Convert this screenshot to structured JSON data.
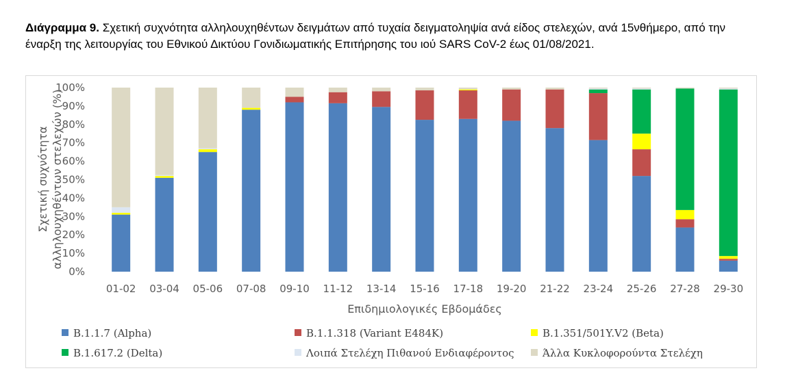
{
  "caption": {
    "label": "Διάγραμμα 9.",
    "text": "Σχετική συχνότητα αλληλουχηθέντων δειγμάτων από τυχαία δειγματοληψία ανά είδος στελεχών, ανά 15νθήμερο, από την έναρξη της λειτουργίας του Εθνικού Δικτύου Γονιδιωματικής Επιτήρησης του ιού SARS CoV-2 έως 01/08/2021."
  },
  "chart_data": {
    "type": "bar",
    "stacked": true,
    "xlabel": "Επιδημιολογικές Εβδομάδες",
    "ylabel": "Σχετική συχνότητα αλληλουχηθέντων στελεχών (%)",
    "ylim": [
      0,
      100
    ],
    "yticks": [
      "0%",
      "10%",
      "20%",
      "30%",
      "40%",
      "50%",
      "60%",
      "70%",
      "80%",
      "90%",
      "100%"
    ],
    "grid": false,
    "legend_position": "bottom",
    "categories": [
      "01-02",
      "03-04",
      "05-06",
      "07-08",
      "09-10",
      "11-12",
      "13-14",
      "15-16",
      "17-18",
      "19-20",
      "21-22",
      "23-24",
      "25-26",
      "27-28",
      "29-30"
    ],
    "series": [
      {
        "name": "B.1.1.7 (Alpha)",
        "color": "#4f81bd",
        "values": [
          31,
          51,
          65,
          88,
          92,
          91.5,
          89.5,
          82.5,
          83,
          82,
          78,
          71.5,
          52,
          24,
          6
        ]
      },
      {
        "name": "B.1.1.318 (Variant E484K)",
        "color": "#c0504d",
        "values": [
          0,
          0,
          0,
          0,
          3,
          6,
          8.5,
          16,
          15.5,
          17,
          21,
          25.5,
          14.5,
          4.5,
          1
        ]
      },
      {
        "name": "B.1.351/501Y.V2 (Beta)",
        "color": "#ffff00",
        "values": [
          1,
          1,
          1.5,
          1,
          0,
          0,
          0,
          0,
          0.5,
          0,
          0,
          0,
          8.5,
          5,
          1.5
        ]
      },
      {
        "name": "B.1.617.2 (Delta)",
        "color": "#00b050",
        "values": [
          0,
          0,
          0,
          0,
          0,
          0,
          0,
          0,
          0,
          0,
          0,
          2,
          24,
          66,
          90.5
        ]
      },
      {
        "name": "Λοιπά Στελέχη Πιθανού Ενδιαφέροντος",
        "color": "#dce6f2",
        "values": [
          3,
          0.5,
          0.5,
          0,
          0,
          0,
          0,
          0,
          0,
          0,
          0,
          0.5,
          0.5,
          0,
          0.5
        ]
      },
      {
        "name": "Άλλα Κυκλοφορούντα Στελέχη",
        "color": "#ddd9c4",
        "values": [
          65,
          47.5,
          33,
          11,
          5,
          2.5,
          2,
          1.5,
          1,
          1,
          1,
          0.5,
          0.5,
          0.5,
          0.5
        ]
      }
    ]
  }
}
